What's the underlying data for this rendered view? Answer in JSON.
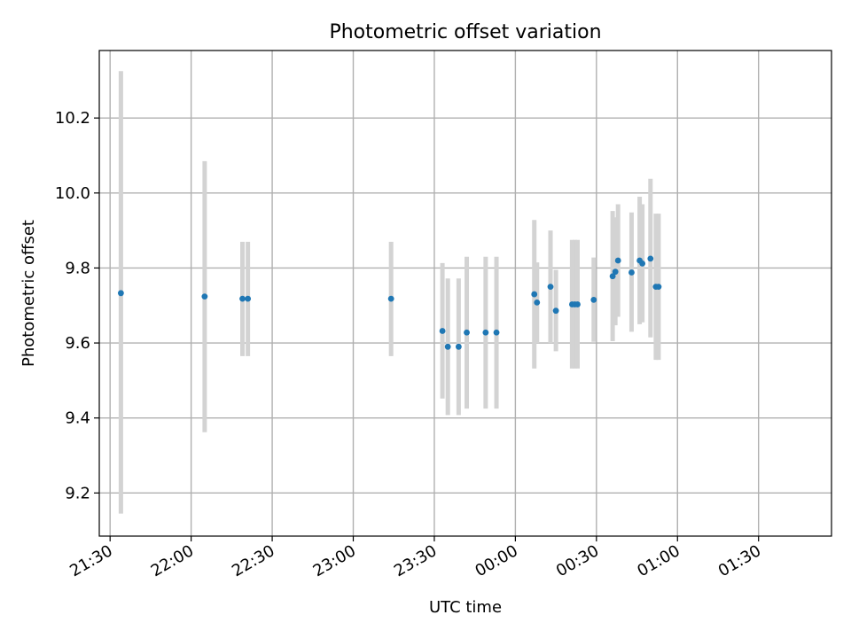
{
  "chart_data": {
    "type": "scatter",
    "title": "Photometric offset variation",
    "xlabel": "UTC time",
    "ylabel": "Photometric offset",
    "x_axis": {
      "scale": "time",
      "min": "21:26",
      "max": "01:57",
      "ticks": [
        "21:30",
        "22:00",
        "22:30",
        "23:00",
        "23:30",
        "00:00",
        "00:30",
        "01:00",
        "01:30"
      ]
    },
    "y_axis": {
      "min": 9.085,
      "max": 10.38,
      "ticks": [
        "9.2",
        "9.4",
        "9.6",
        "9.8",
        "10.0",
        "10.2"
      ]
    },
    "grid": true,
    "marker_color": "#1f77b4",
    "errorbar_color": "#d3d3d3",
    "points": [
      {
        "t": "21:34",
        "y": 9.733,
        "lo": 9.145,
        "hi": 10.325
      },
      {
        "t": "22:05",
        "y": 9.724,
        "lo": 9.362,
        "hi": 10.085
      },
      {
        "t": "22:19",
        "y": 9.718,
        "lo": 9.565,
        "hi": 9.87
      },
      {
        "t": "22:21",
        "y": 9.718,
        "lo": 9.565,
        "hi": 9.87
      },
      {
        "t": "23:14",
        "y": 9.718,
        "lo": 9.565,
        "hi": 9.87
      },
      {
        "t": "23:33",
        "y": 9.632,
        "lo": 9.452,
        "hi": 9.813
      },
      {
        "t": "23:35",
        "y": 9.59,
        "lo": 9.408,
        "hi": 9.772
      },
      {
        "t": "23:39",
        "y": 9.59,
        "lo": 9.408,
        "hi": 9.772
      },
      {
        "t": "23:42",
        "y": 9.628,
        "lo": 9.425,
        "hi": 9.83
      },
      {
        "t": "23:49",
        "y": 9.628,
        "lo": 9.425,
        "hi": 9.83
      },
      {
        "t": "23:53",
        "y": 9.628,
        "lo": 9.425,
        "hi": 9.83
      },
      {
        "t": "00:07",
        "y": 9.73,
        "lo": 9.532,
        "hi": 9.928
      },
      {
        "t": "00:08",
        "y": 9.708,
        "lo": 9.6,
        "hi": 9.815
      },
      {
        "t": "00:13",
        "y": 9.75,
        "lo": 9.6,
        "hi": 9.9
      },
      {
        "t": "00:15",
        "y": 9.686,
        "lo": 9.578,
        "hi": 9.795
      },
      {
        "t": "00:21",
        "y": 9.703,
        "lo": 9.532,
        "hi": 9.875
      },
      {
        "t": "00:22",
        "y": 9.703,
        "lo": 9.532,
        "hi": 9.875
      },
      {
        "t": "00:23",
        "y": 9.703,
        "lo": 9.532,
        "hi": 9.875
      },
      {
        "t": "00:29",
        "y": 9.715,
        "lo": 9.603,
        "hi": 9.828
      },
      {
        "t": "00:36",
        "y": 9.778,
        "lo": 9.605,
        "hi": 9.952
      },
      {
        "t": "00:37",
        "y": 9.79,
        "lo": 9.647,
        "hi": 9.935
      },
      {
        "t": "00:38",
        "y": 9.82,
        "lo": 9.67,
        "hi": 9.97
      },
      {
        "t": "00:43",
        "y": 9.788,
        "lo": 9.63,
        "hi": 9.948
      },
      {
        "t": "00:46",
        "y": 9.82,
        "lo": 9.65,
        "hi": 9.99
      },
      {
        "t": "00:47",
        "y": 9.812,
        "lo": 9.655,
        "hi": 9.97
      },
      {
        "t": "00:50",
        "y": 9.825,
        "lo": 9.615,
        "hi": 10.038
      },
      {
        "t": "00:52",
        "y": 9.75,
        "lo": 9.555,
        "hi": 9.945
      },
      {
        "t": "00:53",
        "y": 9.75,
        "lo": 9.555,
        "hi": 9.945
      }
    ]
  }
}
